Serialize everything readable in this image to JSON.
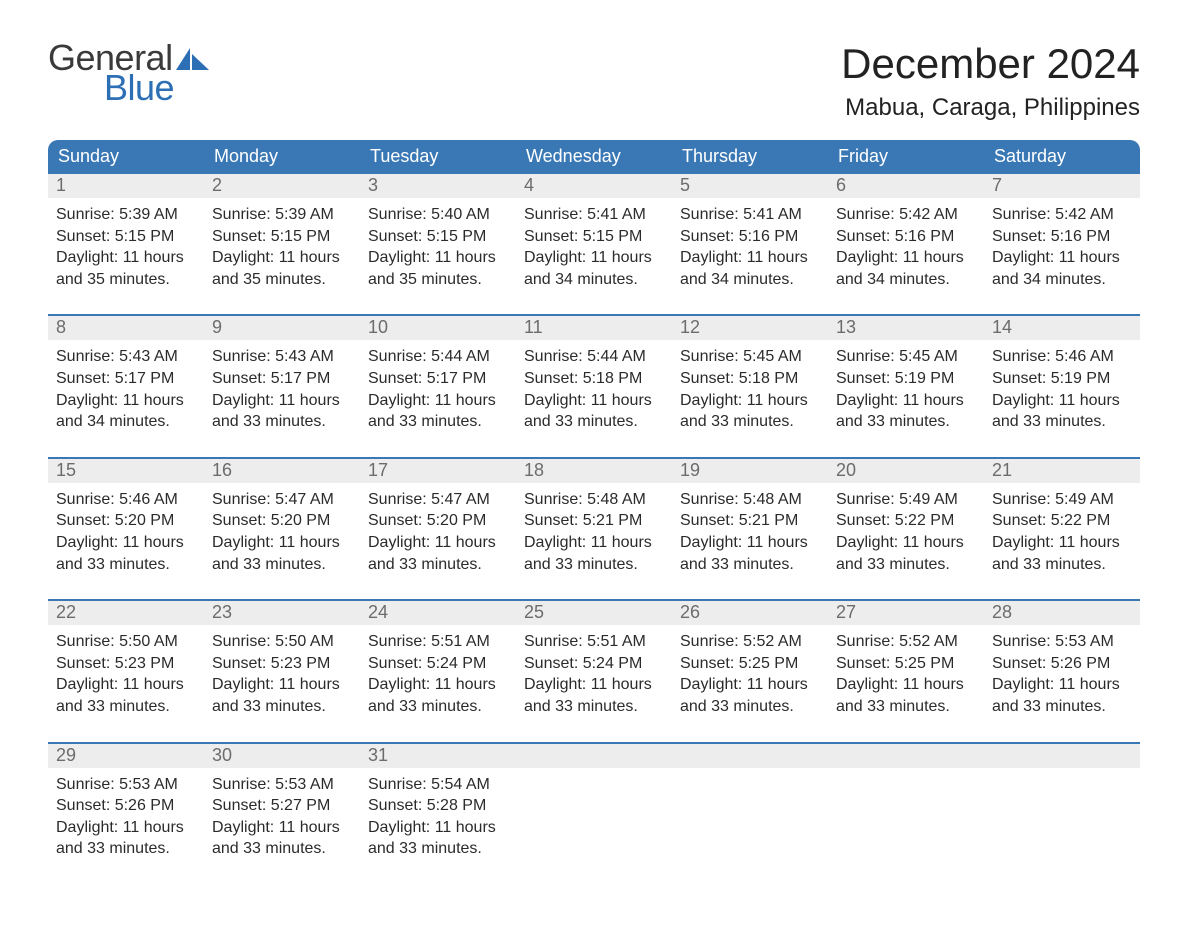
{
  "brand": {
    "general": "General",
    "blue": "Blue"
  },
  "title": "December 2024",
  "location": "Mabua, Caraga, Philippines",
  "colors": {
    "header_bg": "#3a78b5",
    "header_text": "#ffffff",
    "daynum_bg": "#ededed",
    "daynum_text": "#6c6c6c",
    "row_divider": "#3a78b5",
    "body_text": "#2b2b2b",
    "logo_blue": "#2d6fb4",
    "logo_gray": "#3a3a3a",
    "page_bg": "#ffffff"
  },
  "typography": {
    "title_fontsize": 42,
    "location_fontsize": 24,
    "dow_fontsize": 18,
    "daynum_fontsize": 18,
    "body_fontsize": 16,
    "logo_fontsize": 36
  },
  "days_of_week": [
    "Sunday",
    "Monday",
    "Tuesday",
    "Wednesday",
    "Thursday",
    "Friday",
    "Saturday"
  ],
  "weeks": [
    [
      {
        "n": "1",
        "sunrise": "Sunrise: 5:39 AM",
        "sunset": "Sunset: 5:15 PM",
        "d1": "Daylight: 11 hours",
        "d2": "and 35 minutes."
      },
      {
        "n": "2",
        "sunrise": "Sunrise: 5:39 AM",
        "sunset": "Sunset: 5:15 PM",
        "d1": "Daylight: 11 hours",
        "d2": "and 35 minutes."
      },
      {
        "n": "3",
        "sunrise": "Sunrise: 5:40 AM",
        "sunset": "Sunset: 5:15 PM",
        "d1": "Daylight: 11 hours",
        "d2": "and 35 minutes."
      },
      {
        "n": "4",
        "sunrise": "Sunrise: 5:41 AM",
        "sunset": "Sunset: 5:15 PM",
        "d1": "Daylight: 11 hours",
        "d2": "and 34 minutes."
      },
      {
        "n": "5",
        "sunrise": "Sunrise: 5:41 AM",
        "sunset": "Sunset: 5:16 PM",
        "d1": "Daylight: 11 hours",
        "d2": "and 34 minutes."
      },
      {
        "n": "6",
        "sunrise": "Sunrise: 5:42 AM",
        "sunset": "Sunset: 5:16 PM",
        "d1": "Daylight: 11 hours",
        "d2": "and 34 minutes."
      },
      {
        "n": "7",
        "sunrise": "Sunrise: 5:42 AM",
        "sunset": "Sunset: 5:16 PM",
        "d1": "Daylight: 11 hours",
        "d2": "and 34 minutes."
      }
    ],
    [
      {
        "n": "8",
        "sunrise": "Sunrise: 5:43 AM",
        "sunset": "Sunset: 5:17 PM",
        "d1": "Daylight: 11 hours",
        "d2": "and 34 minutes."
      },
      {
        "n": "9",
        "sunrise": "Sunrise: 5:43 AM",
        "sunset": "Sunset: 5:17 PM",
        "d1": "Daylight: 11 hours",
        "d2": "and 33 minutes."
      },
      {
        "n": "10",
        "sunrise": "Sunrise: 5:44 AM",
        "sunset": "Sunset: 5:17 PM",
        "d1": "Daylight: 11 hours",
        "d2": "and 33 minutes."
      },
      {
        "n": "11",
        "sunrise": "Sunrise: 5:44 AM",
        "sunset": "Sunset: 5:18 PM",
        "d1": "Daylight: 11 hours",
        "d2": "and 33 minutes."
      },
      {
        "n": "12",
        "sunrise": "Sunrise: 5:45 AM",
        "sunset": "Sunset: 5:18 PM",
        "d1": "Daylight: 11 hours",
        "d2": "and 33 minutes."
      },
      {
        "n": "13",
        "sunrise": "Sunrise: 5:45 AM",
        "sunset": "Sunset: 5:19 PM",
        "d1": "Daylight: 11 hours",
        "d2": "and 33 minutes."
      },
      {
        "n": "14",
        "sunrise": "Sunrise: 5:46 AM",
        "sunset": "Sunset: 5:19 PM",
        "d1": "Daylight: 11 hours",
        "d2": "and 33 minutes."
      }
    ],
    [
      {
        "n": "15",
        "sunrise": "Sunrise: 5:46 AM",
        "sunset": "Sunset: 5:20 PM",
        "d1": "Daylight: 11 hours",
        "d2": "and 33 minutes."
      },
      {
        "n": "16",
        "sunrise": "Sunrise: 5:47 AM",
        "sunset": "Sunset: 5:20 PM",
        "d1": "Daylight: 11 hours",
        "d2": "and 33 minutes."
      },
      {
        "n": "17",
        "sunrise": "Sunrise: 5:47 AM",
        "sunset": "Sunset: 5:20 PM",
        "d1": "Daylight: 11 hours",
        "d2": "and 33 minutes."
      },
      {
        "n": "18",
        "sunrise": "Sunrise: 5:48 AM",
        "sunset": "Sunset: 5:21 PM",
        "d1": "Daylight: 11 hours",
        "d2": "and 33 minutes."
      },
      {
        "n": "19",
        "sunrise": "Sunrise: 5:48 AM",
        "sunset": "Sunset: 5:21 PM",
        "d1": "Daylight: 11 hours",
        "d2": "and 33 minutes."
      },
      {
        "n": "20",
        "sunrise": "Sunrise: 5:49 AM",
        "sunset": "Sunset: 5:22 PM",
        "d1": "Daylight: 11 hours",
        "d2": "and 33 minutes."
      },
      {
        "n": "21",
        "sunrise": "Sunrise: 5:49 AM",
        "sunset": "Sunset: 5:22 PM",
        "d1": "Daylight: 11 hours",
        "d2": "and 33 minutes."
      }
    ],
    [
      {
        "n": "22",
        "sunrise": "Sunrise: 5:50 AM",
        "sunset": "Sunset: 5:23 PM",
        "d1": "Daylight: 11 hours",
        "d2": "and 33 minutes."
      },
      {
        "n": "23",
        "sunrise": "Sunrise: 5:50 AM",
        "sunset": "Sunset: 5:23 PM",
        "d1": "Daylight: 11 hours",
        "d2": "and 33 minutes."
      },
      {
        "n": "24",
        "sunrise": "Sunrise: 5:51 AM",
        "sunset": "Sunset: 5:24 PM",
        "d1": "Daylight: 11 hours",
        "d2": "and 33 minutes."
      },
      {
        "n": "25",
        "sunrise": "Sunrise: 5:51 AM",
        "sunset": "Sunset: 5:24 PM",
        "d1": "Daylight: 11 hours",
        "d2": "and 33 minutes."
      },
      {
        "n": "26",
        "sunrise": "Sunrise: 5:52 AM",
        "sunset": "Sunset: 5:25 PM",
        "d1": "Daylight: 11 hours",
        "d2": "and 33 minutes."
      },
      {
        "n": "27",
        "sunrise": "Sunrise: 5:52 AM",
        "sunset": "Sunset: 5:25 PM",
        "d1": "Daylight: 11 hours",
        "d2": "and 33 minutes."
      },
      {
        "n": "28",
        "sunrise": "Sunrise: 5:53 AM",
        "sunset": "Sunset: 5:26 PM",
        "d1": "Daylight: 11 hours",
        "d2": "and 33 minutes."
      }
    ],
    [
      {
        "n": "29",
        "sunrise": "Sunrise: 5:53 AM",
        "sunset": "Sunset: 5:26 PM",
        "d1": "Daylight: 11 hours",
        "d2": "and 33 minutes."
      },
      {
        "n": "30",
        "sunrise": "Sunrise: 5:53 AM",
        "sunset": "Sunset: 5:27 PM",
        "d1": "Daylight: 11 hours",
        "d2": "and 33 minutes."
      },
      {
        "n": "31",
        "sunrise": "Sunrise: 5:54 AM",
        "sunset": "Sunset: 5:28 PM",
        "d1": "Daylight: 11 hours",
        "d2": "and 33 minutes."
      },
      {
        "empty": true
      },
      {
        "empty": true
      },
      {
        "empty": true
      },
      {
        "empty": true
      }
    ]
  ]
}
